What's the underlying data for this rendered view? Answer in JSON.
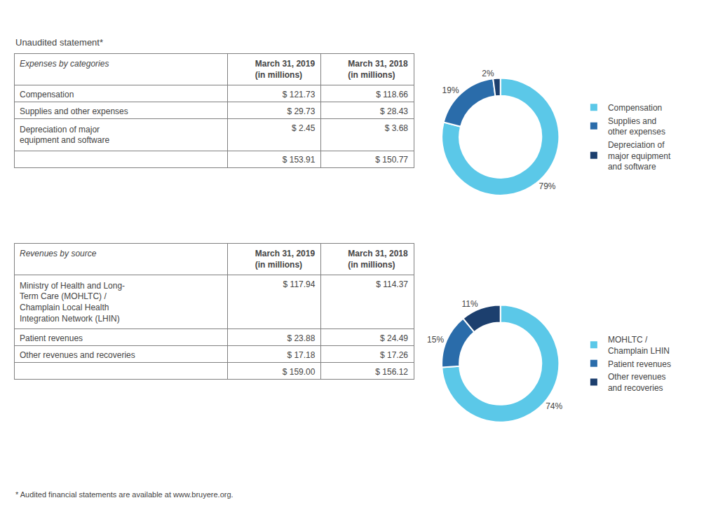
{
  "chart_data": [
    {
      "type": "table",
      "subtitle": "Unaudited statement*",
      "title": "Expenses by categories",
      "categories": [
        "Compensation",
        "Supplies and other expenses",
        "Depreciation of major\nequipment and software",
        null
      ],
      "series": [
        {
          "name": "March 31, 2019\n(in millions)",
          "values": [
            121.73,
            29.73,
            2.45,
            153.91
          ],
          "value_labels": [
            "$ 121.73",
            "$ 29.73",
            "$ 2.45",
            "$ 153.91"
          ]
        },
        {
          "name": "March 31, 2018\n(in millions)",
          "values": [
            118.66,
            28.43,
            3.68,
            150.77
          ],
          "value_labels": [
            "$ 118.66",
            "$ 28.43",
            "$ 3.68",
            "$ 150.77"
          ]
        }
      ]
    },
    {
      "type": "table",
      "title": "Revenues by source",
      "categories": [
        "Ministry of Health and Long-\nTerm Care (MOHLTC) /\nChamplain Local Health\nIntegration Network (LHIN)",
        "Patient revenues",
        "Other revenues and recoveries",
        null
      ],
      "series": [
        {
          "name": "March 31, 2019\n(in millions)",
          "values": [
            117.94,
            23.88,
            17.18,
            159.0
          ],
          "value_labels": [
            "$ 117.94",
            "$ 23.88",
            "$ 17.18",
            "$ 159.00"
          ]
        },
        {
          "name": "March 31, 2018\n(in millions)",
          "values": [
            114.37,
            24.49,
            17.26,
            156.12
          ],
          "value_labels": [
            "$ 114.37",
            "$ 24.49",
            "$ 17.26",
            "$ 156.12"
          ]
        }
      ],
      "annotations": [
        "* Audited financial statements are available at www.bruyere.org."
      ]
    },
    {
      "type": "pie",
      "categories": [
        "Compensation",
        "Supplies and\nother expenses",
        "Depreciation of\nmajor equipment\nand software"
      ],
      "values": [
        79,
        19,
        2
      ],
      "value_labels": [
        "79%",
        "19%",
        "2%"
      ],
      "data_labels": true,
      "colors": [
        "#5bc8e8",
        "#2a6caa",
        "#1c3f6e"
      ],
      "legend": "right"
    },
    {
      "type": "pie",
      "categories": [
        "MOHLTC /\nChamplain LHIN",
        "Patient revenues",
        "Other revenues\nand recoveries"
      ],
      "values": [
        74,
        15,
        11
      ],
      "value_labels": [
        "74%",
        "15%",
        "11%"
      ],
      "data_labels": true,
      "colors": [
        "#5bc8e8",
        "#2a6caa",
        "#1c3f6e"
      ],
      "legend": "right"
    }
  ]
}
